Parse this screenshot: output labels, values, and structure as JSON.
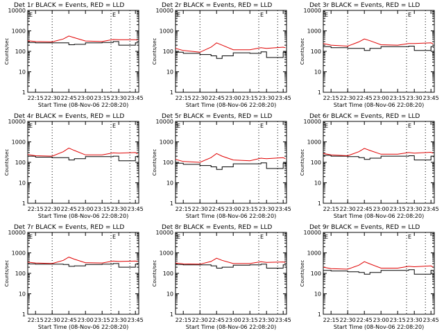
{
  "figure": {
    "ylabel": "Counts/sec",
    "xlabel": "Start Time (08-Nov-06 22:08:20)",
    "title_suffix": "BLACK = Events, RED = LLD",
    "marker_label": "E",
    "x_ticks": [
      "22:15",
      "22:30",
      "22:45",
      "23:00",
      "23:15",
      "23:30",
      "23:45"
    ],
    "y_ticks": [
      "1",
      "10",
      "100",
      "1000",
      "10000"
    ],
    "colors": {
      "events": "#000000",
      "lld": "#e00000",
      "axes": "#000000"
    }
  },
  "chart_data": [
    {
      "type": "line",
      "title": "Det 1r BLACK = Events, RED = LLD",
      "yscale": "log",
      "ylim": [
        1,
        10000
      ],
      "x": [
        "22:08",
        "22:15",
        "22:30",
        "22:40",
        "22:45",
        "22:50",
        "23:00",
        "23:15",
        "23:25",
        "23:30",
        "23:45",
        "23:47"
      ],
      "series": [
        {
          "name": "Events",
          "color": "#000000",
          "values": [
            270,
            260,
            260,
            260,
            210,
            220,
            260,
            270,
            300,
            200,
            260,
            250
          ]
        },
        {
          "name": "LLD",
          "color": "#e00000",
          "values": [
            330,
            300,
            290,
            400,
            560,
            460,
            320,
            300,
            380,
            370,
            370,
            360
          ]
        }
      ]
    },
    {
      "type": "line",
      "title": "Det 2r BLACK = Events, RED = LLD",
      "yscale": "log",
      "ylim": [
        1,
        10000
      ],
      "x": [
        "22:08",
        "22:15",
        "22:30",
        "22:40",
        "22:45",
        "22:50",
        "23:00",
        "23:15",
        "23:25",
        "23:30",
        "23:45",
        "23:47"
      ],
      "series": [
        {
          "name": "Events",
          "color": "#000000",
          "values": [
            90,
            80,
            70,
            60,
            45,
            60,
            85,
            80,
            95,
            50,
            90,
            80
          ]
        },
        {
          "name": "LLD",
          "color": "#e00000",
          "values": [
            140,
            110,
            90,
            160,
            260,
            200,
            120,
            120,
            150,
            140,
            160,
            150
          ]
        }
      ]
    },
    {
      "type": "line",
      "title": "Det 3r BLACK = Events, RED = LLD",
      "yscale": "log",
      "ylim": [
        1,
        10000
      ],
      "x": [
        "22:08",
        "22:15",
        "22:30",
        "22:40",
        "22:45",
        "22:50",
        "23:00",
        "23:15",
        "23:25",
        "23:30",
        "23:45",
        "23:47"
      ],
      "series": [
        {
          "name": "Events",
          "color": "#000000",
          "values": [
            170,
            150,
            140,
            140,
            110,
            140,
            170,
            170,
            180,
            110,
            170,
            150
          ]
        },
        {
          "name": "LLD",
          "color": "#e00000",
          "values": [
            240,
            200,
            180,
            290,
            400,
            330,
            210,
            200,
            240,
            240,
            260,
            230
          ]
        }
      ]
    },
    {
      "type": "line",
      "title": "Det 4r BLACK = Events, RED = LLD",
      "yscale": "log",
      "ylim": [
        1,
        10000
      ],
      "x": [
        "22:08",
        "22:15",
        "22:30",
        "22:40",
        "22:45",
        "22:50",
        "23:00",
        "23:15",
        "23:25",
        "23:30",
        "23:45",
        "23:47"
      ],
      "series": [
        {
          "name": "Events",
          "color": "#000000",
          "values": [
            200,
            180,
            170,
            170,
            130,
            150,
            190,
            190,
            200,
            120,
            190,
            170
          ]
        },
        {
          "name": "LLD",
          "color": "#e00000",
          "values": [
            240,
            210,
            200,
            330,
            500,
            380,
            230,
            230,
            290,
            280,
            300,
            260
          ]
        }
      ]
    },
    {
      "type": "line",
      "title": "Det 5r BLACK = Events, RED = LLD",
      "yscale": "log",
      "ylim": [
        1,
        10000
      ],
      "x": [
        "22:08",
        "22:15",
        "22:30",
        "22:40",
        "22:45",
        "22:50",
        "23:00",
        "23:15",
        "23:25",
        "23:30",
        "23:45",
        "23:47"
      ],
      "series": [
        {
          "name": "Events",
          "color": "#000000",
          "values": [
            90,
            80,
            70,
            60,
            45,
            60,
            85,
            85,
            95,
            50,
            90,
            80
          ]
        },
        {
          "name": "LLD",
          "color": "#e00000",
          "values": [
            140,
            110,
            100,
            170,
            270,
            200,
            130,
            120,
            160,
            150,
            170,
            150
          ]
        }
      ]
    },
    {
      "type": "line",
      "title": "Det 6r BLACK = Events, RED = LLD",
      "yscale": "log",
      "ylim": [
        1,
        10000
      ],
      "x": [
        "22:08",
        "22:15",
        "22:30",
        "22:40",
        "22:45",
        "22:50",
        "23:00",
        "23:15",
        "23:25",
        "23:30",
        "23:45",
        "23:47"
      ],
      "series": [
        {
          "name": "Events",
          "color": "#000000",
          "values": [
            220,
            200,
            190,
            170,
            140,
            160,
            200,
            200,
            210,
            130,
            200,
            180
          ]
        },
        {
          "name": "LLD",
          "color": "#e00000",
          "values": [
            270,
            230,
            210,
            330,
            480,
            380,
            250,
            250,
            300,
            280,
            310,
            280
          ]
        }
      ]
    },
    {
      "type": "line",
      "title": "Det 7r BLACK = Events, RED = LLD",
      "yscale": "log",
      "ylim": [
        1,
        10000
      ],
      "x": [
        "22:08",
        "22:15",
        "22:30",
        "22:40",
        "22:45",
        "22:50",
        "23:00",
        "23:15",
        "23:25",
        "23:30",
        "23:45",
        "23:47"
      ],
      "series": [
        {
          "name": "Events",
          "color": "#000000",
          "values": [
            290,
            280,
            280,
            270,
            220,
            230,
            270,
            280,
            300,
            200,
            280,
            260
          ]
        },
        {
          "name": "LLD",
          "color": "#e00000",
          "values": [
            350,
            320,
            300,
            430,
            620,
            490,
            330,
            320,
            400,
            380,
            400,
            380
          ]
        }
      ]
    },
    {
      "type": "line",
      "title": "Det 8r BLACK = Events, RED = LLD",
      "yscale": "log",
      "ylim": [
        1,
        10000
      ],
      "x": [
        "22:08",
        "22:15",
        "22:30",
        "22:40",
        "22:45",
        "22:50",
        "23:00",
        "23:15",
        "23:25",
        "23:30",
        "23:45",
        "23:47"
      ],
      "series": [
        {
          "name": "Events",
          "color": "#000000",
          "values": [
            270,
            260,
            260,
            230,
            180,
            200,
            250,
            260,
            280,
            180,
            260,
            240
          ]
        },
        {
          "name": "LLD",
          "color": "#e00000",
          "values": [
            320,
            290,
            280,
            380,
            550,
            430,
            300,
            300,
            370,
            340,
            360,
            340
          ]
        }
      ]
    },
    {
      "type": "line",
      "title": "Det 9r BLACK = Events, RED = LLD",
      "yscale": "log",
      "ylim": [
        1,
        10000
      ],
      "x": [
        "22:08",
        "22:15",
        "22:30",
        "22:40",
        "22:45",
        "22:50",
        "23:00",
        "23:15",
        "23:25",
        "23:30",
        "23:45",
        "23:47"
      ],
      "series": [
        {
          "name": "Events",
          "color": "#000000",
          "values": [
            140,
            130,
            120,
            110,
            90,
            110,
            140,
            140,
            150,
            90,
            140,
            120
          ]
        },
        {
          "name": "LLD",
          "color": "#e00000",
          "values": [
            200,
            170,
            160,
            250,
            370,
            290,
            180,
            180,
            220,
            210,
            230,
            200
          ]
        }
      ]
    }
  ]
}
